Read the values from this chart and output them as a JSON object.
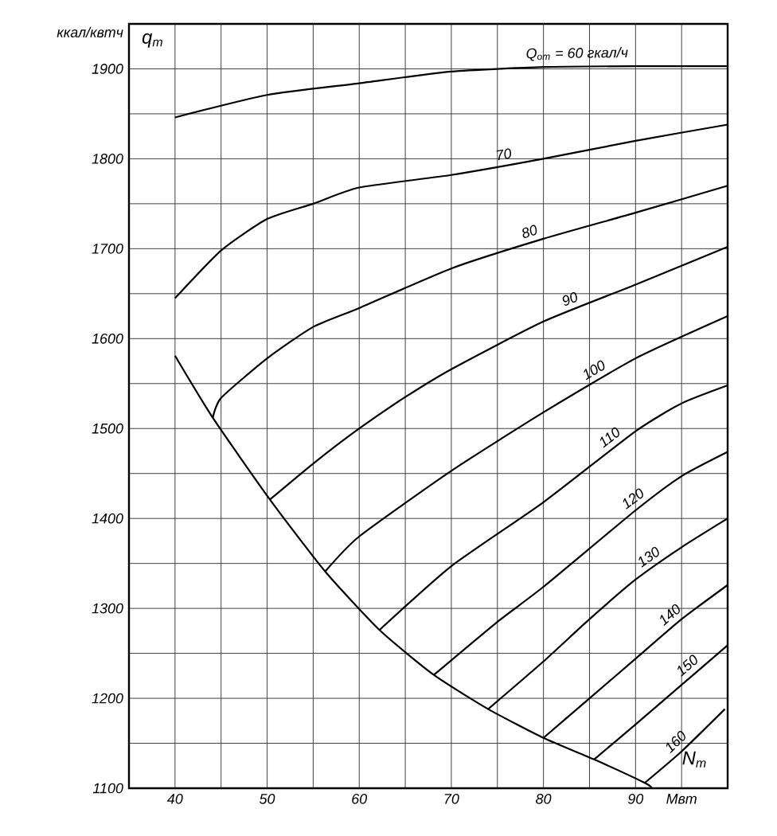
{
  "chart_data": {
    "type": "line",
    "xlabel": "N$_{т}$",
    "ylabel": "q$_{т}$",
    "annotations": [
      "ккал/квтч"
    ],
    "xlim": [
      35,
      100
    ],
    "ylim": [
      1100,
      1950
    ],
    "xticks": [
      {
        "value": 35,
        "label": null
      },
      40,
      {
        "value": 45,
        "label": null
      },
      50,
      {
        "value": 55,
        "label": null
      },
      60,
      {
        "value": 65,
        "label": null
      },
      70,
      {
        "value": 75,
        "label": null
      },
      80,
      {
        "value": 85,
        "label": null
      },
      90,
      {
        "value": 95,
        "label": "Мвт"
      },
      {
        "value": 100,
        "label": null
      }
    ],
    "yticks": [
      1100,
      {
        "value": 1150,
        "label": null
      },
      1200,
      {
        "value": 1250,
        "label": null
      },
      1300,
      {
        "value": 1350,
        "label": null
      },
      1400,
      {
        "value": 1450,
        "label": null
      },
      1500,
      {
        "value": 1550,
        "label": null
      },
      1600,
      {
        "value": 1650,
        "label": null
      },
      1700,
      {
        "value": 1750,
        "label": null
      },
      1800,
      {
        "value": 1850,
        "label": null
      },
      1900
    ],
    "grid": true,
    "legend": false,
    "marker": "none",
    "line_style": "solid",
    "series": [
      {
        "name": "Q$_{от}$ = 60 гкал/ч",
        "color": "#000000",
        "x": [
          40,
          50,
          60,
          70,
          80,
          90,
          100
        ],
        "values": [
          1846,
          1871,
          1884,
          1897,
          1902,
          1903,
          1903
        ]
      },
      {
        "name": "70",
        "color": "#000000",
        "x": [
          40,
          45,
          50,
          55,
          60,
          70,
          80,
          90,
          100
        ],
        "values": [
          1645,
          1698,
          1733,
          1750,
          1768,
          1782,
          1800,
          1820,
          1838
        ]
      },
      {
        "name": "80",
        "color": "#000000",
        "x": [
          44.1,
          45,
          50,
          55,
          60,
          70,
          80,
          90,
          100
        ],
        "values": [
          1512,
          1534,
          1578,
          1613,
          1634,
          1678,
          1711,
          1740,
          1770
        ]
      },
      {
        "name": "90",
        "color": "#000000",
        "x": [
          50.3,
          55,
          60,
          65,
          70,
          80,
          90,
          100
        ],
        "values": [
          1421,
          1461,
          1500,
          1535,
          1566,
          1619,
          1660,
          1702
        ]
      },
      {
        "name": "100",
        "color": "#000000",
        "x": [
          56.3,
          60,
          70,
          80,
          90,
          100
        ],
        "values": [
          1341,
          1380,
          1453,
          1518,
          1578,
          1625
        ]
      },
      {
        "name": "110",
        "color": "#000000",
        "x": [
          62.2,
          70,
          80,
          90,
          95,
          100
        ],
        "values": [
          1276,
          1347,
          1418,
          1497,
          1528,
          1548
        ]
      },
      {
        "name": "120",
        "color": "#000000",
        "x": [
          68.1,
          75,
          80,
          90,
          95,
          100
        ],
        "values": [
          1226,
          1285,
          1324,
          1409,
          1447,
          1474
        ]
      },
      {
        "name": "130",
        "color": "#000000",
        "x": [
          74,
          80,
          85,
          90,
          95,
          100
        ],
        "values": [
          1188,
          1241,
          1288,
          1332,
          1368,
          1400
        ]
      },
      {
        "name": "140",
        "color": "#000000",
        "x": [
          80,
          85,
          90,
          95,
          100
        ],
        "values": [
          1156,
          1200,
          1244,
          1288,
          1326
        ]
      },
      {
        "name": "150",
        "color": "#000000",
        "x": [
          85.5,
          90,
          95,
          100
        ],
        "values": [
          1132,
          1171,
          1215,
          1259
        ]
      },
      {
        "name": "160",
        "color": "#000000",
        "x": [
          91,
          95,
          99.7
        ],
        "values": [
          1106,
          1141,
          1188
        ]
      },
      {
        "color": "#000000",
        "x": [
          40,
          44.1,
          50.3,
          56.3,
          62.2,
          68.1,
          74,
          80,
          85.5,
          91,
          91.8
        ],
        "values": [
          1581,
          1512,
          1421,
          1341,
          1276,
          1226,
          1188,
          1156,
          1132,
          1106,
          1100
        ]
      }
    ]
  }
}
